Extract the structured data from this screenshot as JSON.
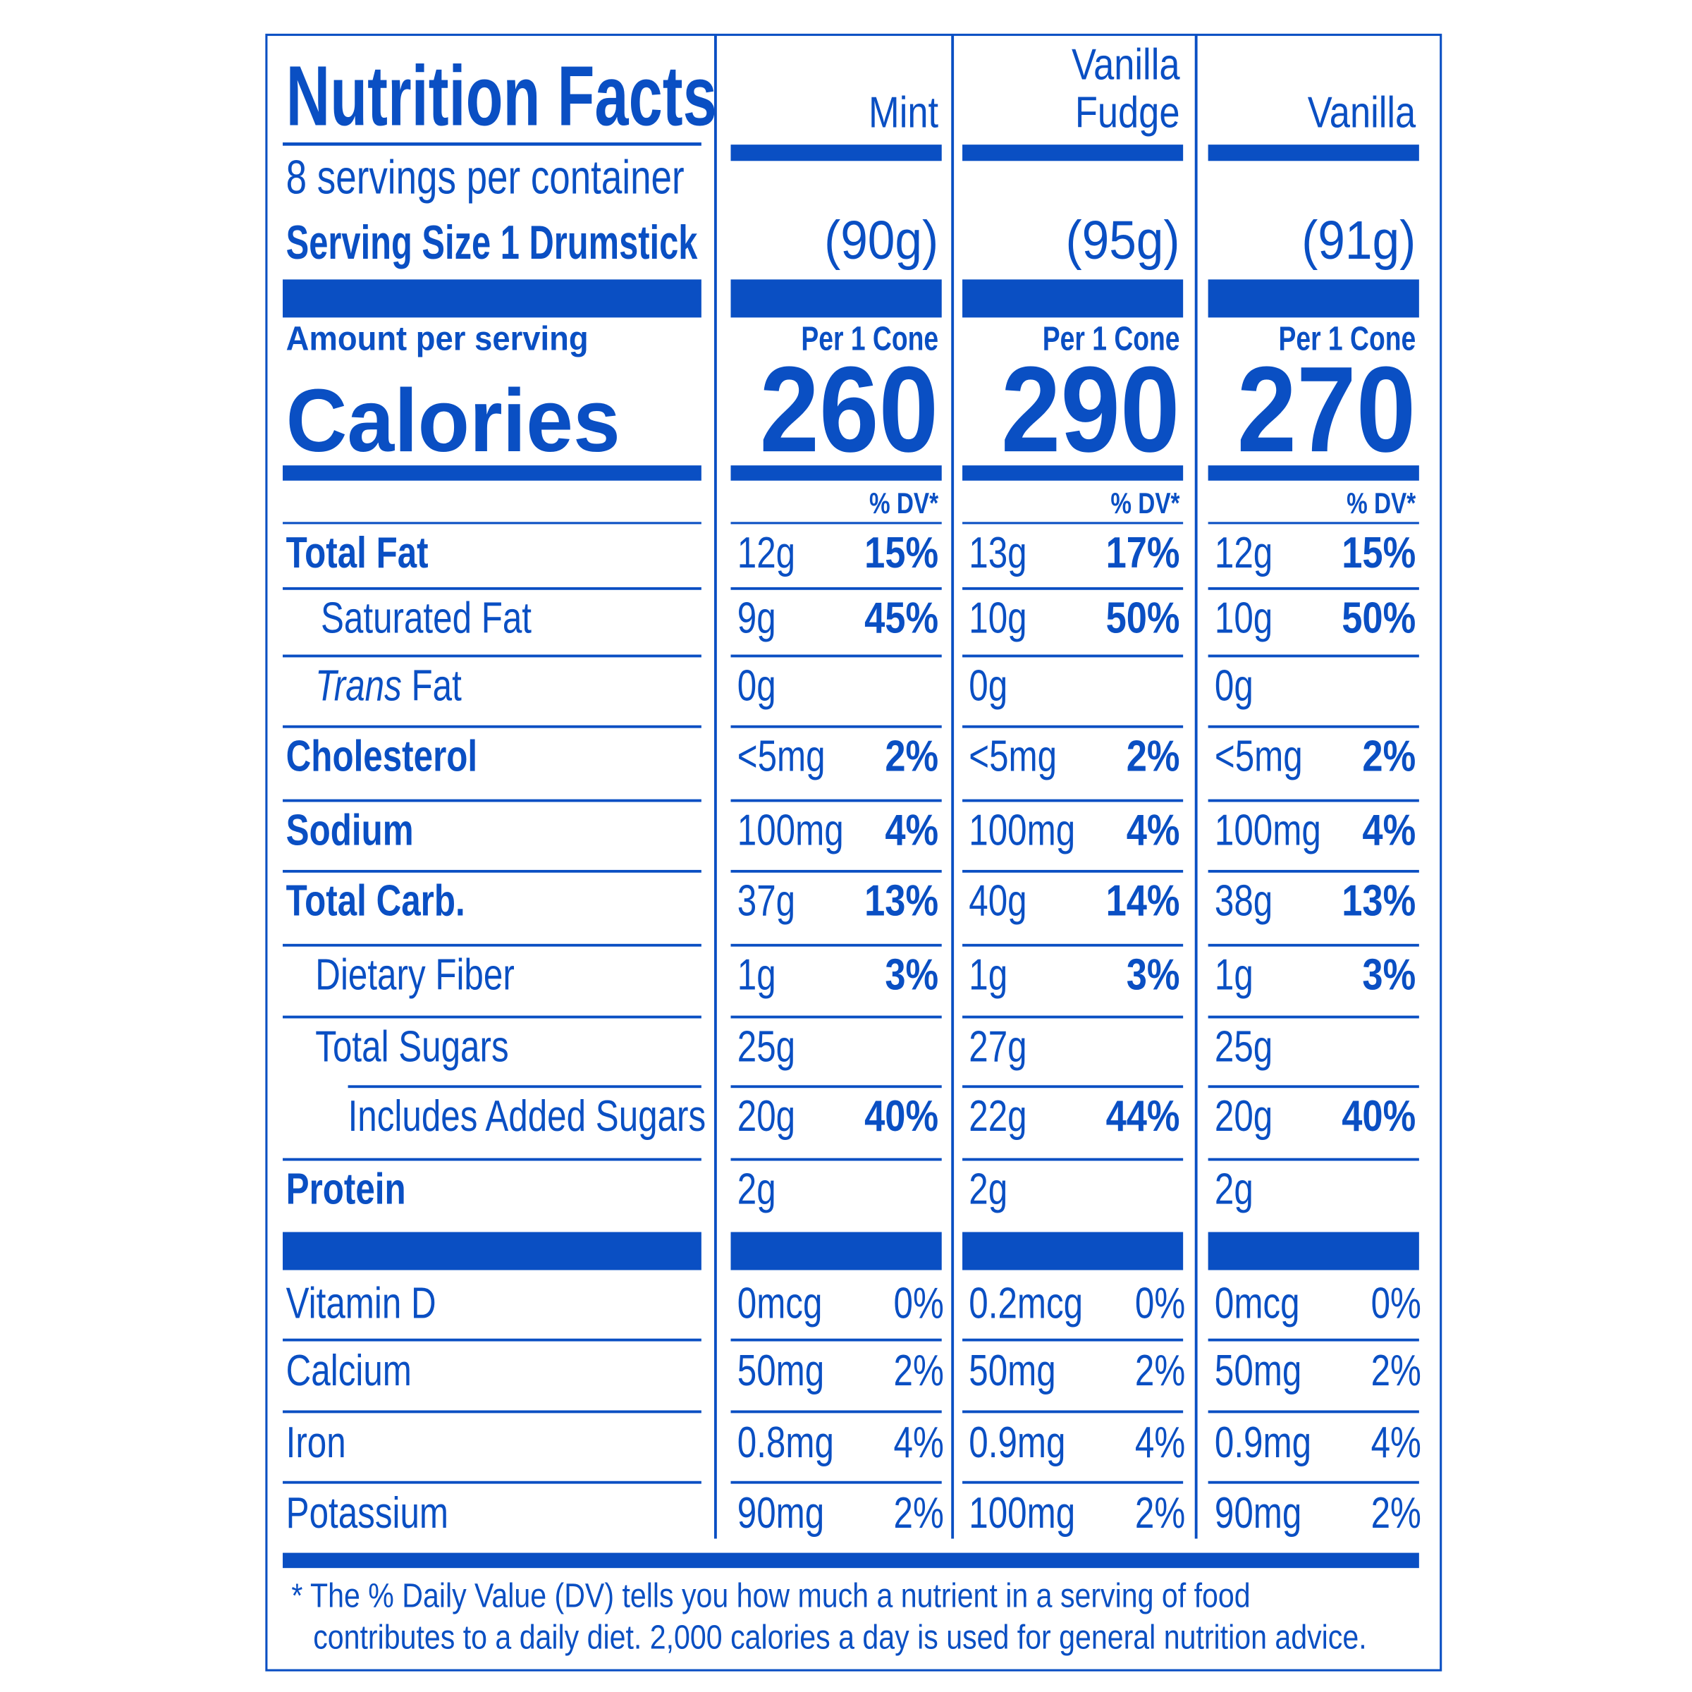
{
  "title": "Nutrition Facts",
  "servings": "8 servings per container",
  "serving_size": "Serving Size 1 Drumstick",
  "amount_per_serving": "Amount per serving",
  "calories_label": "Calories",
  "per_label": "Per 1 Cone",
  "dv_header": "% DV*",
  "products": [
    {
      "name_lines": [
        "Mint"
      ],
      "size": "(90g)",
      "calories": 260
    },
    {
      "name_lines": [
        "Vanilla",
        "Fudge"
      ],
      "size": "(95g)",
      "calories": 290
    },
    {
      "name_lines": [
        "Vanilla"
      ],
      "size": "(91g)",
      "calories": 270
    }
  ],
  "nutrients": [
    {
      "label": "Total Fat",
      "values": [
        [
          "12g",
          "15%"
        ],
        [
          "13g",
          "17%"
        ],
        [
          "12g",
          "15%"
        ]
      ]
    },
    {
      "label": "Saturated Fat",
      "values": [
        [
          "9g",
          "45%"
        ],
        [
          "10g",
          "50%"
        ],
        [
          "10g",
          "50%"
        ]
      ]
    },
    {
      "label_italic": "Trans",
      "label": " Fat",
      "values": [
        [
          "0g",
          null
        ],
        [
          "0g",
          null
        ],
        [
          "0g",
          null
        ]
      ]
    },
    {
      "label": "Cholesterol",
      "values": [
        [
          "<5mg",
          "2%"
        ],
        [
          "<5mg",
          "2%"
        ],
        [
          "<5mg",
          "2%"
        ]
      ]
    },
    {
      "label": "Sodium",
      "values": [
        [
          "100mg",
          "4%"
        ],
        [
          "100mg",
          "4%"
        ],
        [
          "100mg",
          "4%"
        ]
      ]
    },
    {
      "label": "Total Carb.",
      "values": [
        [
          "37g",
          "13%"
        ],
        [
          "40g",
          "14%"
        ],
        [
          "38g",
          "13%"
        ]
      ]
    },
    {
      "label": "Dietary Fiber",
      "values": [
        [
          "1g",
          "3%"
        ],
        [
          "1g",
          "3%"
        ],
        [
          "1g",
          "3%"
        ]
      ]
    },
    {
      "label": "Total Sugars",
      "values": [
        [
          "25g",
          null
        ],
        [
          "27g",
          null
        ],
        [
          "25g",
          null
        ]
      ]
    },
    {
      "label": "Includes Added Sugars",
      "values": [
        [
          "20g",
          "40%"
        ],
        [
          "22g",
          "44%"
        ],
        [
          "20g",
          "40%"
        ]
      ]
    },
    {
      "label": "Protein",
      "values": [
        [
          "2g",
          null
        ],
        [
          "2g",
          null
        ],
        [
          "2g",
          null
        ]
      ]
    }
  ],
  "vitamins": [
    {
      "label": "Vitamin D",
      "values": [
        [
          "0mcg",
          "0%"
        ],
        [
          "0.2mcg",
          "0%"
        ],
        [
          "0mcg",
          "0%"
        ]
      ]
    },
    {
      "label": "Calcium",
      "values": [
        [
          "50mg",
          "2%"
        ],
        [
          "50mg",
          "2%"
        ],
        [
          "50mg",
          "2%"
        ]
      ]
    },
    {
      "label": "Iron",
      "values": [
        [
          "0.8mg",
          "4%"
        ],
        [
          "0.9mg",
          "4%"
        ],
        [
          "0.9mg",
          "4%"
        ]
      ]
    },
    {
      "label": "Potassium",
      "values": [
        [
          "90mg",
          "2%"
        ],
        [
          "100mg",
          "2%"
        ],
        [
          "90mg",
          "2%"
        ]
      ]
    }
  ],
  "footnote": [
    "* The % Daily Value (DV) tells you how much a nutrient in a serving of food",
    "contributes to a daily diet. 2,000 calories a day is used for general nutrition advice."
  ]
}
